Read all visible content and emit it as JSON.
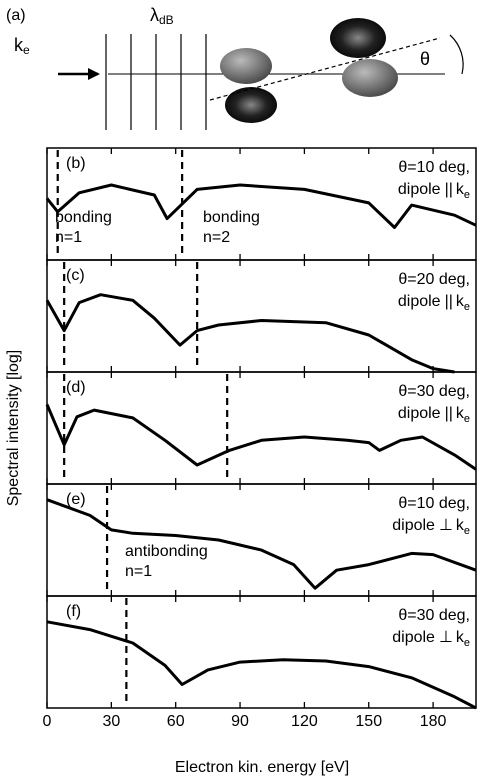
{
  "schematic": {
    "label": "(a)",
    "k": "k",
    "k_sub": "e",
    "lambda": "λ",
    "lambda_sub": "dB",
    "theta": "θ"
  },
  "shared_axes": {
    "xlabel": "Electron kin. energy [eV]",
    "ylabel": "Spectral intensity [log]",
    "xlim": [
      0,
      200
    ],
    "xticks": [
      0,
      30,
      60,
      90,
      120,
      150,
      180
    ]
  },
  "chart_data": [
    {
      "type": "line",
      "panel_label": "(b)",
      "angle_label": "θ=10 deg,",
      "dipole_label": "dipole",
      "dipole_symbol": "||",
      "k": "k",
      "k_sub": "e",
      "xlim": [
        0,
        200
      ],
      "ylim": [
        0,
        1
      ],
      "x": [
        0,
        5,
        15,
        30,
        50,
        56,
        70,
        90,
        120,
        150,
        162,
        170,
        190,
        200
      ],
      "values": [
        0.55,
        0.43,
        0.6,
        0.67,
        0.58,
        0.37,
        0.63,
        0.67,
        0.63,
        0.51,
        0.29,
        0.49,
        0.4,
        0.31
      ],
      "markers": [
        5,
        63
      ],
      "region_labels": [
        [
          "bonding",
          "n=1"
        ],
        [
          "bonding",
          "n=2"
        ]
      ]
    },
    {
      "type": "line",
      "panel_label": "(c)",
      "angle_label": "θ=20 deg,",
      "dipole_label": "dipole",
      "dipole_symbol": "||",
      "k": "k",
      "k_sub": "e",
      "xlim": [
        0,
        200
      ],
      "ylim": [
        0,
        1
      ],
      "x": [
        0,
        8,
        15,
        25,
        40,
        50,
        62,
        70,
        80,
        100,
        130,
        150,
        170,
        180,
        190
      ],
      "values": [
        0.64,
        0.37,
        0.62,
        0.69,
        0.64,
        0.48,
        0.24,
        0.37,
        0.42,
        0.46,
        0.44,
        0.33,
        0.11,
        0.03,
        0.0
      ],
      "markers": [
        8,
        70
      ]
    },
    {
      "type": "line",
      "panel_label": "(d)",
      "angle_label": "θ=30 deg,",
      "dipole_label": "dipole",
      "dipole_symbol": "||",
      "k": "k",
      "k_sub": "e",
      "xlim": [
        0,
        200
      ],
      "ylim": [
        0,
        1
      ],
      "x": [
        0,
        8,
        14,
        22,
        40,
        55,
        70,
        85,
        100,
        120,
        140,
        150,
        155,
        165,
        175,
        190,
        200
      ],
      "values": [
        0.71,
        0.35,
        0.6,
        0.66,
        0.59,
        0.39,
        0.17,
        0.3,
        0.39,
        0.42,
        0.39,
        0.37,
        0.3,
        0.39,
        0.42,
        0.26,
        0.13
      ],
      "markers": [
        8,
        84
      ]
    },
    {
      "type": "line",
      "panel_label": "(e)",
      "angle_label": "θ=10 deg,",
      "dipole_label": "dipole",
      "dipole_symbol": "⊥",
      "k": "k",
      "k_sub": "e",
      "xlim": [
        0,
        200
      ],
      "ylim": [
        0,
        1
      ],
      "x": [
        0,
        20,
        30,
        40,
        60,
        80,
        100,
        115,
        125,
        135,
        150,
        170,
        180,
        200
      ],
      "values": [
        0.86,
        0.72,
        0.59,
        0.56,
        0.54,
        0.5,
        0.41,
        0.28,
        0.07,
        0.23,
        0.28,
        0.38,
        0.37,
        0.23
      ],
      "markers": [
        28
      ],
      "region_labels": [
        [
          "antibonding",
          "n=1"
        ]
      ]
    },
    {
      "type": "line",
      "panel_label": "(f)",
      "angle_label": "θ=30 deg,",
      "dipole_label": "dipole",
      "dipole_symbol": "⊥",
      "k": "k",
      "k_sub": "e",
      "xlim": [
        0,
        200
      ],
      "ylim": [
        0,
        1
      ],
      "x": [
        0,
        20,
        40,
        55,
        63,
        75,
        90,
        110,
        130,
        150,
        170,
        190,
        200
      ],
      "values": [
        0.77,
        0.7,
        0.58,
        0.38,
        0.21,
        0.34,
        0.41,
        0.43,
        0.42,
        0.37,
        0.27,
        0.1,
        0.0
      ],
      "markers": [
        37
      ]
    }
  ]
}
